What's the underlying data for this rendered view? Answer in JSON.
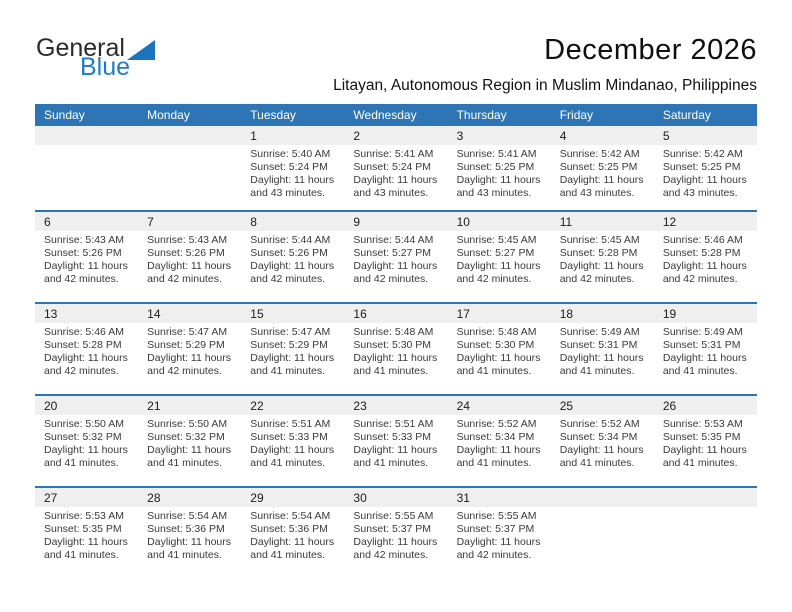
{
  "logo": {
    "line1": "General",
    "line2": "Blue"
  },
  "header": {
    "title": "December 2026",
    "subtitle": "Litayan, Autonomous Region in Muslim Mindanao, Philippines"
  },
  "colors": {
    "header_bg": "#2e75b5",
    "divider": "#2e75b5",
    "band_bg": "#efefef",
    "logo_blue": "#1e7bc4"
  },
  "weekdays": [
    "Sunday",
    "Monday",
    "Tuesday",
    "Wednesday",
    "Thursday",
    "Friday",
    "Saturday"
  ],
  "weeks": [
    [
      {},
      {},
      {
        "date": "1",
        "sunrise": "Sunrise: 5:40 AM",
        "sunset": "Sunset: 5:24 PM",
        "daylight1": "Daylight: 11 hours",
        "daylight2": "and 43 minutes."
      },
      {
        "date": "2",
        "sunrise": "Sunrise: 5:41 AM",
        "sunset": "Sunset: 5:24 PM",
        "daylight1": "Daylight: 11 hours",
        "daylight2": "and 43 minutes."
      },
      {
        "date": "3",
        "sunrise": "Sunrise: 5:41 AM",
        "sunset": "Sunset: 5:25 PM",
        "daylight1": "Daylight: 11 hours",
        "daylight2": "and 43 minutes."
      },
      {
        "date": "4",
        "sunrise": "Sunrise: 5:42 AM",
        "sunset": "Sunset: 5:25 PM",
        "daylight1": "Daylight: 11 hours",
        "daylight2": "and 43 minutes."
      },
      {
        "date": "5",
        "sunrise": "Sunrise: 5:42 AM",
        "sunset": "Sunset: 5:25 PM",
        "daylight1": "Daylight: 11 hours",
        "daylight2": "and 43 minutes."
      }
    ],
    [
      {
        "date": "6",
        "sunrise": "Sunrise: 5:43 AM",
        "sunset": "Sunset: 5:26 PM",
        "daylight1": "Daylight: 11 hours",
        "daylight2": "and 42 minutes."
      },
      {
        "date": "7",
        "sunrise": "Sunrise: 5:43 AM",
        "sunset": "Sunset: 5:26 PM",
        "daylight1": "Daylight: 11 hours",
        "daylight2": "and 42 minutes."
      },
      {
        "date": "8",
        "sunrise": "Sunrise: 5:44 AM",
        "sunset": "Sunset: 5:26 PM",
        "daylight1": "Daylight: 11 hours",
        "daylight2": "and 42 minutes."
      },
      {
        "date": "9",
        "sunrise": "Sunrise: 5:44 AM",
        "sunset": "Sunset: 5:27 PM",
        "daylight1": "Daylight: 11 hours",
        "daylight2": "and 42 minutes."
      },
      {
        "date": "10",
        "sunrise": "Sunrise: 5:45 AM",
        "sunset": "Sunset: 5:27 PM",
        "daylight1": "Daylight: 11 hours",
        "daylight2": "and 42 minutes."
      },
      {
        "date": "11",
        "sunrise": "Sunrise: 5:45 AM",
        "sunset": "Sunset: 5:28 PM",
        "daylight1": "Daylight: 11 hours",
        "daylight2": "and 42 minutes."
      },
      {
        "date": "12",
        "sunrise": "Sunrise: 5:46 AM",
        "sunset": "Sunset: 5:28 PM",
        "daylight1": "Daylight: 11 hours",
        "daylight2": "and 42 minutes."
      }
    ],
    [
      {
        "date": "13",
        "sunrise": "Sunrise: 5:46 AM",
        "sunset": "Sunset: 5:28 PM",
        "daylight1": "Daylight: 11 hours",
        "daylight2": "and 42 minutes."
      },
      {
        "date": "14",
        "sunrise": "Sunrise: 5:47 AM",
        "sunset": "Sunset: 5:29 PM",
        "daylight1": "Daylight: 11 hours",
        "daylight2": "and 42 minutes."
      },
      {
        "date": "15",
        "sunrise": "Sunrise: 5:47 AM",
        "sunset": "Sunset: 5:29 PM",
        "daylight1": "Daylight: 11 hours",
        "daylight2": "and 41 minutes."
      },
      {
        "date": "16",
        "sunrise": "Sunrise: 5:48 AM",
        "sunset": "Sunset: 5:30 PM",
        "daylight1": "Daylight: 11 hours",
        "daylight2": "and 41 minutes."
      },
      {
        "date": "17",
        "sunrise": "Sunrise: 5:48 AM",
        "sunset": "Sunset: 5:30 PM",
        "daylight1": "Daylight: 11 hours",
        "daylight2": "and 41 minutes."
      },
      {
        "date": "18",
        "sunrise": "Sunrise: 5:49 AM",
        "sunset": "Sunset: 5:31 PM",
        "daylight1": "Daylight: 11 hours",
        "daylight2": "and 41 minutes."
      },
      {
        "date": "19",
        "sunrise": "Sunrise: 5:49 AM",
        "sunset": "Sunset: 5:31 PM",
        "daylight1": "Daylight: 11 hours",
        "daylight2": "and 41 minutes."
      }
    ],
    [
      {
        "date": "20",
        "sunrise": "Sunrise: 5:50 AM",
        "sunset": "Sunset: 5:32 PM",
        "daylight1": "Daylight: 11 hours",
        "daylight2": "and 41 minutes."
      },
      {
        "date": "21",
        "sunrise": "Sunrise: 5:50 AM",
        "sunset": "Sunset: 5:32 PM",
        "daylight1": "Daylight: 11 hours",
        "daylight2": "and 41 minutes."
      },
      {
        "date": "22",
        "sunrise": "Sunrise: 5:51 AM",
        "sunset": "Sunset: 5:33 PM",
        "daylight1": "Daylight: 11 hours",
        "daylight2": "and 41 minutes."
      },
      {
        "date": "23",
        "sunrise": "Sunrise: 5:51 AM",
        "sunset": "Sunset: 5:33 PM",
        "daylight1": "Daylight: 11 hours",
        "daylight2": "and 41 minutes."
      },
      {
        "date": "24",
        "sunrise": "Sunrise: 5:52 AM",
        "sunset": "Sunset: 5:34 PM",
        "daylight1": "Daylight: 11 hours",
        "daylight2": "and 41 minutes."
      },
      {
        "date": "25",
        "sunrise": "Sunrise: 5:52 AM",
        "sunset": "Sunset: 5:34 PM",
        "daylight1": "Daylight: 11 hours",
        "daylight2": "and 41 minutes."
      },
      {
        "date": "26",
        "sunrise": "Sunrise: 5:53 AM",
        "sunset": "Sunset: 5:35 PM",
        "daylight1": "Daylight: 11 hours",
        "daylight2": "and 41 minutes."
      }
    ],
    [
      {
        "date": "27",
        "sunrise": "Sunrise: 5:53 AM",
        "sunset": "Sunset: 5:35 PM",
        "daylight1": "Daylight: 11 hours",
        "daylight2": "and 41 minutes."
      },
      {
        "date": "28",
        "sunrise": "Sunrise: 5:54 AM",
        "sunset": "Sunset: 5:36 PM",
        "daylight1": "Daylight: 11 hours",
        "daylight2": "and 41 minutes."
      },
      {
        "date": "29",
        "sunrise": "Sunrise: 5:54 AM",
        "sunset": "Sunset: 5:36 PM",
        "daylight1": "Daylight: 11 hours",
        "daylight2": "and 41 minutes."
      },
      {
        "date": "30",
        "sunrise": "Sunrise: 5:55 AM",
        "sunset": "Sunset: 5:37 PM",
        "daylight1": "Daylight: 11 hours",
        "daylight2": "and 42 minutes."
      },
      {
        "date": "31",
        "sunrise": "Sunrise: 5:55 AM",
        "sunset": "Sunset: 5:37 PM",
        "daylight1": "Daylight: 11 hours",
        "daylight2": "and 42 minutes."
      },
      {},
      {}
    ]
  ]
}
